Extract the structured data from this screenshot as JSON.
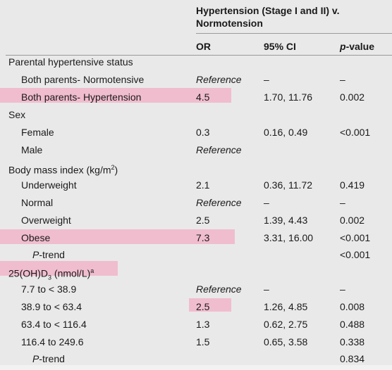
{
  "header": {
    "group_title": "Hypertension (Stage I and II) v. Normotension",
    "columns": {
      "or": "OR",
      "ci": "95% CI",
      "p_italic": "p",
      "p_rest": "-value"
    }
  },
  "rows": [
    {
      "label": "Parental hypertensive status",
      "or": "",
      "ci": "",
      "p": ""
    },
    {
      "label": "Both parents- Normotensive",
      "or": "Reference",
      "ci": "–",
      "p": "–"
    },
    {
      "label": "Both parents- Hypertension",
      "or": "4.5",
      "ci": "1.70, 11.76",
      "p": "0.002"
    },
    {
      "label": "Sex",
      "or": "",
      "ci": "",
      "p": ""
    },
    {
      "label": "Female",
      "or": "0.3",
      "ci": "0.16, 0.49",
      "p": "<0.001"
    },
    {
      "label": "Male",
      "or": "Reference",
      "ci": "",
      "p": ""
    },
    {
      "label_main": "Body mass index (kg/m",
      "label_sup": "2",
      "label_end": ")",
      "or": "",
      "ci": "",
      "p": ""
    },
    {
      "label": "Underweight",
      "or": "2.1",
      "ci": "0.36, 11.72",
      "p": "0.419"
    },
    {
      "label": "Normal",
      "or": "Reference",
      "ci": "–",
      "p": "–"
    },
    {
      "label": "Overweight",
      "or": "2.5",
      "ci": "1.39, 4.43",
      "p": "0.002"
    },
    {
      "label": "Obese",
      "or": "7.3",
      "ci": "3.31, 16.00",
      "p": "<0.001"
    },
    {
      "label_italic": "P",
      "label_rest": "-trend",
      "or": "",
      "ci": "",
      "p": "<0.001"
    },
    {
      "label_main": "25(OH)D",
      "label_sub": "3",
      "label_mid": " (nmol/L)",
      "label_sup": "a",
      "or": "",
      "ci": "",
      "p": ""
    },
    {
      "label": "7.7 to < 38.9",
      "or": "Reference",
      "ci": "–",
      "p": "–"
    },
    {
      "label": "38.9 to < 63.4",
      "or": "2.5",
      "ci": "1.26, 4.85",
      "p": "0.008"
    },
    {
      "label": "63.4 to < 116.4",
      "or": "1.3",
      "ci": "0.62, 2.75",
      "p": "0.488"
    },
    {
      "label": "116.4 to 249.6",
      "or": "1.5",
      "ci": "0.65, 3.58",
      "p": "0.338"
    },
    {
      "label_italic": "P",
      "label_rest": "-trend",
      "or": "",
      "ci": "",
      "p": "0.834"
    }
  ],
  "colors": {
    "highlight": "#f1b5c9",
    "background": "#e9e9ea",
    "rule": "#9a9a9a"
  }
}
